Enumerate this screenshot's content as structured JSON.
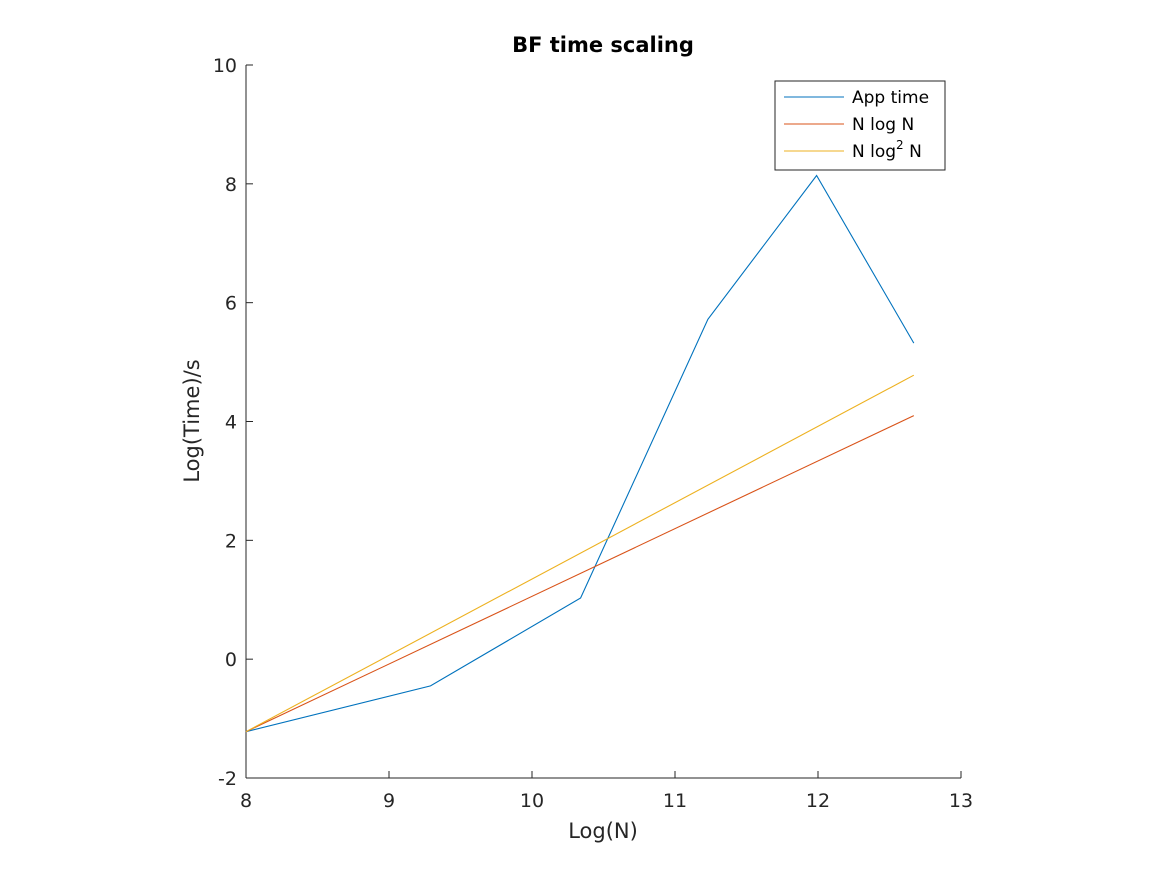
{
  "chart_data": {
    "type": "line",
    "title": "BF time scaling",
    "xlabel": "Log(N)",
    "ylabel": "Log(Time)/s",
    "xlim": [
      8,
      13
    ],
    "ylim": [
      -2,
      10
    ],
    "xticks": [
      8,
      9,
      10,
      11,
      12,
      13
    ],
    "yticks": [
      -2,
      0,
      2,
      4,
      6,
      8,
      10
    ],
    "grid": false,
    "legend_position": "top-right",
    "series": [
      {
        "name": "App time",
        "color": "#0072BD",
        "x": [
          8.0,
          9.29,
          10.34,
          11.23,
          11.99,
          12.67
        ],
        "y": [
          -1.22,
          -0.45,
          1.03,
          5.72,
          8.14,
          5.32
        ]
      },
      {
        "name": "N log N",
        "color": "#D95319",
        "x": [
          8.0,
          12.67
        ],
        "y": [
          -1.22,
          4.1
        ]
      },
      {
        "name": "N log",
        "name_superscript": "2",
        "name_suffix": " N",
        "color": "#EDB120",
        "x": [
          8.0,
          12.67
        ],
        "y": [
          -1.22,
          4.78
        ]
      }
    ]
  }
}
